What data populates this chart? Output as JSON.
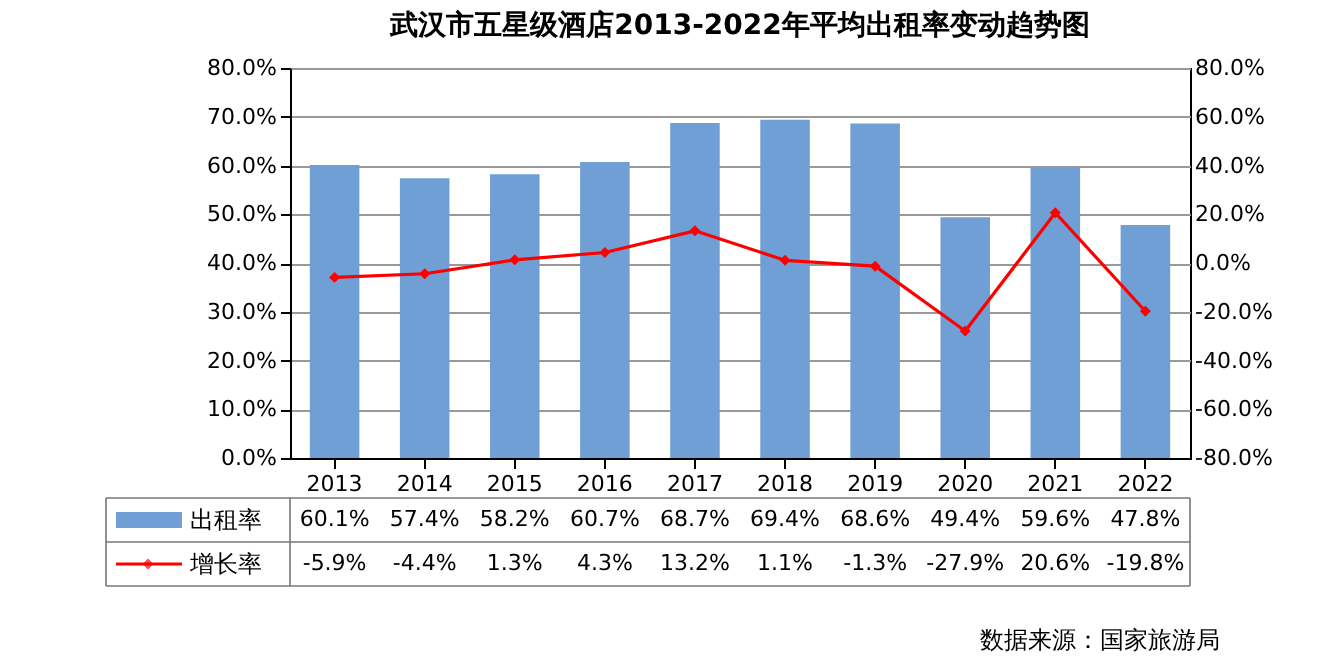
{
  "chart_data": {
    "type": "bar",
    "title": "武汉市五星级酒店2013-2022年平均出租率变动趋势图",
    "categories": [
      "2013",
      "2014",
      "2015",
      "2016",
      "2017",
      "2018",
      "2019",
      "2020",
      "2021",
      "2022"
    ],
    "series": [
      {
        "name": "出租率",
        "color": "#6f9fd4",
        "values": [
          60.1,
          57.4,
          58.2,
          60.7,
          68.7,
          69.4,
          68.6,
          49.4,
          59.6,
          47.8
        ],
        "value_labels": [
          "60.1%",
          "57.4%",
          "58.2%",
          "60.7%",
          "68.7%",
          "69.4%",
          "68.6%",
          "49.4%",
          "59.6%",
          "47.8%"
        ]
      },
      {
        "name": "增长率",
        "type": "line",
        "axis": "y2",
        "color": "#ff0000",
        "marker": "diamond",
        "values": [
          -5.9,
          -4.4,
          1.3,
          4.3,
          13.2,
          1.1,
          -1.3,
          -27.9,
          20.6,
          -19.8
        ],
        "value_labels": [
          "-5.9%",
          "-4.4%",
          "1.3%",
          "4.3%",
          "13.2%",
          "1.1%",
          "-1.3%",
          "-27.9%",
          "20.6%",
          "-19.8%"
        ]
      }
    ],
    "ylim": [
      0,
      80
    ],
    "yticks": [
      {
        "value": 0,
        "label": "0.0%"
      },
      {
        "value": 10,
        "label": "10.0%"
      },
      {
        "value": 20,
        "label": "20.0%"
      },
      {
        "value": 30,
        "label": "30.0%"
      },
      {
        "value": 40,
        "label": "40.0%"
      },
      {
        "value": 50,
        "label": "50.0%"
      },
      {
        "value": 60,
        "label": "60.0%"
      },
      {
        "value": 70,
        "label": "70.0%"
      },
      {
        "value": 80,
        "label": "80.0%"
      }
    ],
    "y2lim": [
      -80,
      80
    ],
    "y2ticks": [
      {
        "value": -80,
        "label": "-80.0%"
      },
      {
        "value": -60,
        "label": "-60.0%"
      },
      {
        "value": -40,
        "label": "-40.0%"
      },
      {
        "value": -20,
        "label": "-20.0%"
      },
      {
        "value": 0,
        "label": "0.0%"
      },
      {
        "value": 20,
        "label": "20.0%"
      },
      {
        "value": 40,
        "label": "40.0%"
      },
      {
        "value": 60,
        "label": "60.0%"
      },
      {
        "value": 80,
        "label": "80.0%"
      }
    ],
    "grid": "y",
    "legend": "bottom",
    "annotations": [
      "数据来源：国家旅游局"
    ]
  }
}
